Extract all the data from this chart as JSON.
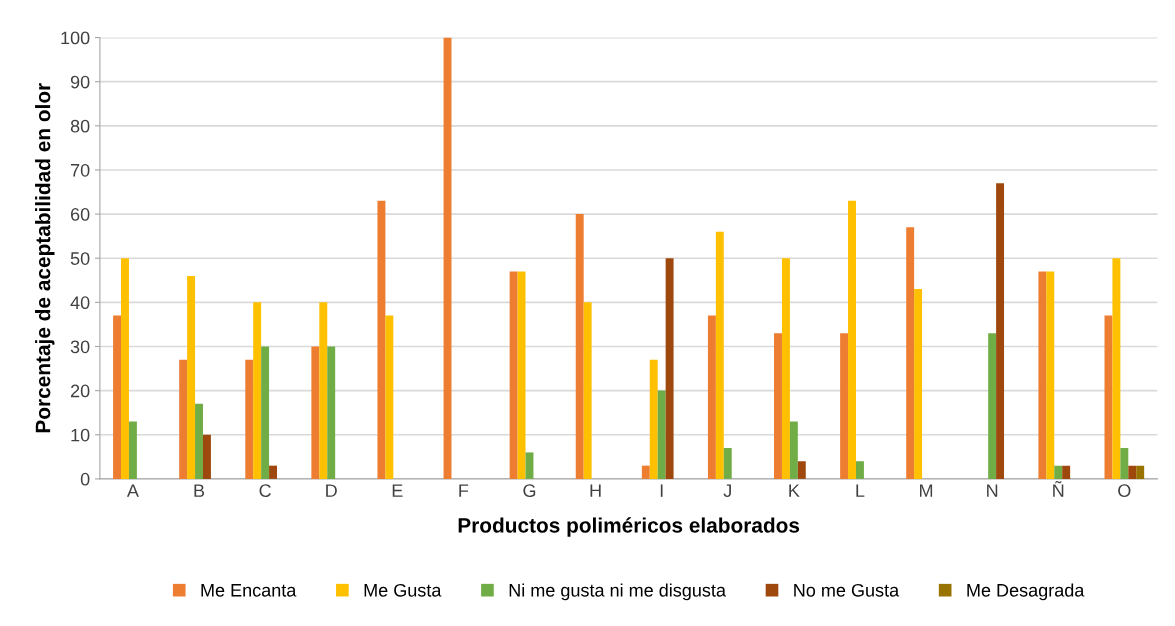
{
  "chart_data": {
    "type": "bar",
    "xlabel": "Productos poliméricos elaborados",
    "ylabel": "Porcentaje de aceptabilidad en olor",
    "categories": [
      "A",
      "B",
      "C",
      "D",
      "E",
      "F",
      "G",
      "H",
      "I",
      "J",
      "K",
      "L",
      "M",
      "N",
      "Ñ",
      "O"
    ],
    "series": [
      {
        "name": "Me Encanta",
        "color": "#ed7d31",
        "values": [
          37,
          27,
          27,
          30,
          63,
          100,
          47,
          60,
          3,
          37,
          33,
          33,
          57,
          0,
          47,
          37
        ]
      },
      {
        "name": "Me Gusta",
        "color": "#ffc000",
        "values": [
          50,
          46,
          40,
          40,
          37,
          0,
          47,
          40,
          27,
          56,
          50,
          63,
          43,
          0,
          47,
          50
        ]
      },
      {
        "name": "Ni me gusta ni me disgusta",
        "color": "#70ad47",
        "values": [
          13,
          17,
          30,
          30,
          0,
          0,
          6,
          0,
          20,
          7,
          13,
          4,
          0,
          33,
          3,
          7
        ]
      },
      {
        "name": "No me Gusta",
        "color": "#9e480e",
        "values": [
          0,
          10,
          3,
          0,
          0,
          0,
          0,
          0,
          50,
          0,
          4,
          0,
          0,
          67,
          3,
          3
        ]
      },
      {
        "name": "Me Desagrada",
        "color": "#997300",
        "values": [
          0,
          0,
          0,
          0,
          0,
          0,
          0,
          0,
          0,
          0,
          0,
          0,
          0,
          0,
          0,
          3
        ]
      }
    ],
    "ylim": [
      0,
      100
    ],
    "yticks": [
      0,
      10,
      20,
      30,
      40,
      50,
      60,
      70,
      80,
      90,
      100
    ],
    "grid": "y",
    "legend": "bottom"
  }
}
